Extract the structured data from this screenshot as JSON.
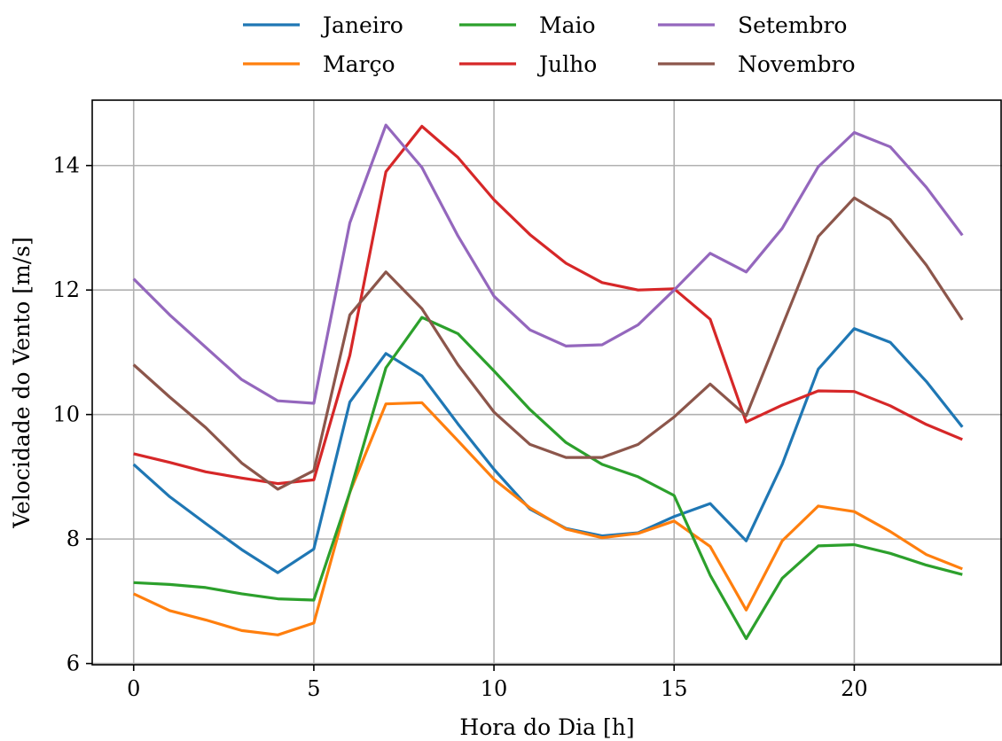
{
  "chart_data": {
    "type": "line",
    "title": "",
    "xlabel": "Hora do Dia [h]",
    "ylabel": "Velocidade do Vento [m/s]",
    "xlim": [
      -1.15,
      24.1
    ],
    "ylim": [
      5.98,
      15.05
    ],
    "xticks": [
      0,
      5,
      10,
      15,
      20
    ],
    "yticks": [
      6,
      8,
      10,
      12,
      14
    ],
    "grid": true,
    "legend_position": "top-center, above plot, 3 columns",
    "x": [
      0,
      1,
      2,
      3,
      4,
      5,
      6,
      7,
      8,
      9,
      10,
      11,
      12,
      13,
      14,
      15,
      16,
      17,
      18,
      19,
      20,
      21,
      22,
      23
    ],
    "series": [
      {
        "name": "Janeiro",
        "color": "#1f77b4",
        "values": [
          9.2,
          8.68,
          8.25,
          7.83,
          7.46,
          7.84,
          10.2,
          10.98,
          10.62,
          9.85,
          9.12,
          8.48,
          8.17,
          8.05,
          8.1,
          8.36,
          8.57,
          7.97,
          9.2,
          10.73,
          11.38,
          11.16,
          10.53,
          9.8
        ]
      },
      {
        "name": "Março",
        "color": "#ff7f0e",
        "values": [
          7.12,
          6.85,
          6.7,
          6.53,
          6.46,
          6.65,
          8.75,
          10.17,
          10.19,
          9.58,
          8.96,
          8.5,
          8.16,
          8.02,
          8.09,
          8.29,
          7.88,
          6.86,
          7.97,
          8.53,
          8.44,
          8.12,
          7.75,
          7.52
        ]
      },
      {
        "name": "Maio",
        "color": "#2ca02c",
        "values": [
          7.3,
          7.27,
          7.22,
          7.12,
          7.04,
          7.02,
          8.75,
          10.75,
          11.56,
          11.3,
          10.7,
          10.08,
          9.55,
          9.2,
          9.0,
          8.7,
          7.42,
          6.4,
          7.37,
          7.89,
          7.91,
          7.77,
          7.58,
          7.43
        ]
      },
      {
        "name": "Julho",
        "color": "#d62728",
        "values": [
          9.37,
          9.23,
          9.08,
          8.98,
          8.89,
          8.95,
          10.95,
          13.9,
          14.63,
          14.13,
          13.45,
          12.89,
          12.43,
          12.12,
          12.0,
          12.02,
          11.53,
          9.88,
          10.15,
          10.38,
          10.37,
          10.14,
          9.84,
          9.6
        ]
      },
      {
        "name": "Setembro",
        "color": "#9467bd",
        "values": [
          12.18,
          11.6,
          11.08,
          10.56,
          10.22,
          10.18,
          13.08,
          14.65,
          13.97,
          12.87,
          11.9,
          11.36,
          11.1,
          11.12,
          11.44,
          12.0,
          12.59,
          12.29,
          12.99,
          13.98,
          14.53,
          14.3,
          13.65,
          12.88
        ]
      },
      {
        "name": "Novembro",
        "color": "#8c564b",
        "values": [
          10.8,
          10.28,
          9.79,
          9.22,
          8.8,
          9.1,
          11.6,
          12.29,
          11.7,
          10.8,
          10.04,
          9.52,
          9.31,
          9.31,
          9.52,
          9.96,
          10.49,
          9.98,
          11.42,
          12.86,
          13.48,
          13.13,
          12.4,
          11.52
        ]
      }
    ]
  }
}
